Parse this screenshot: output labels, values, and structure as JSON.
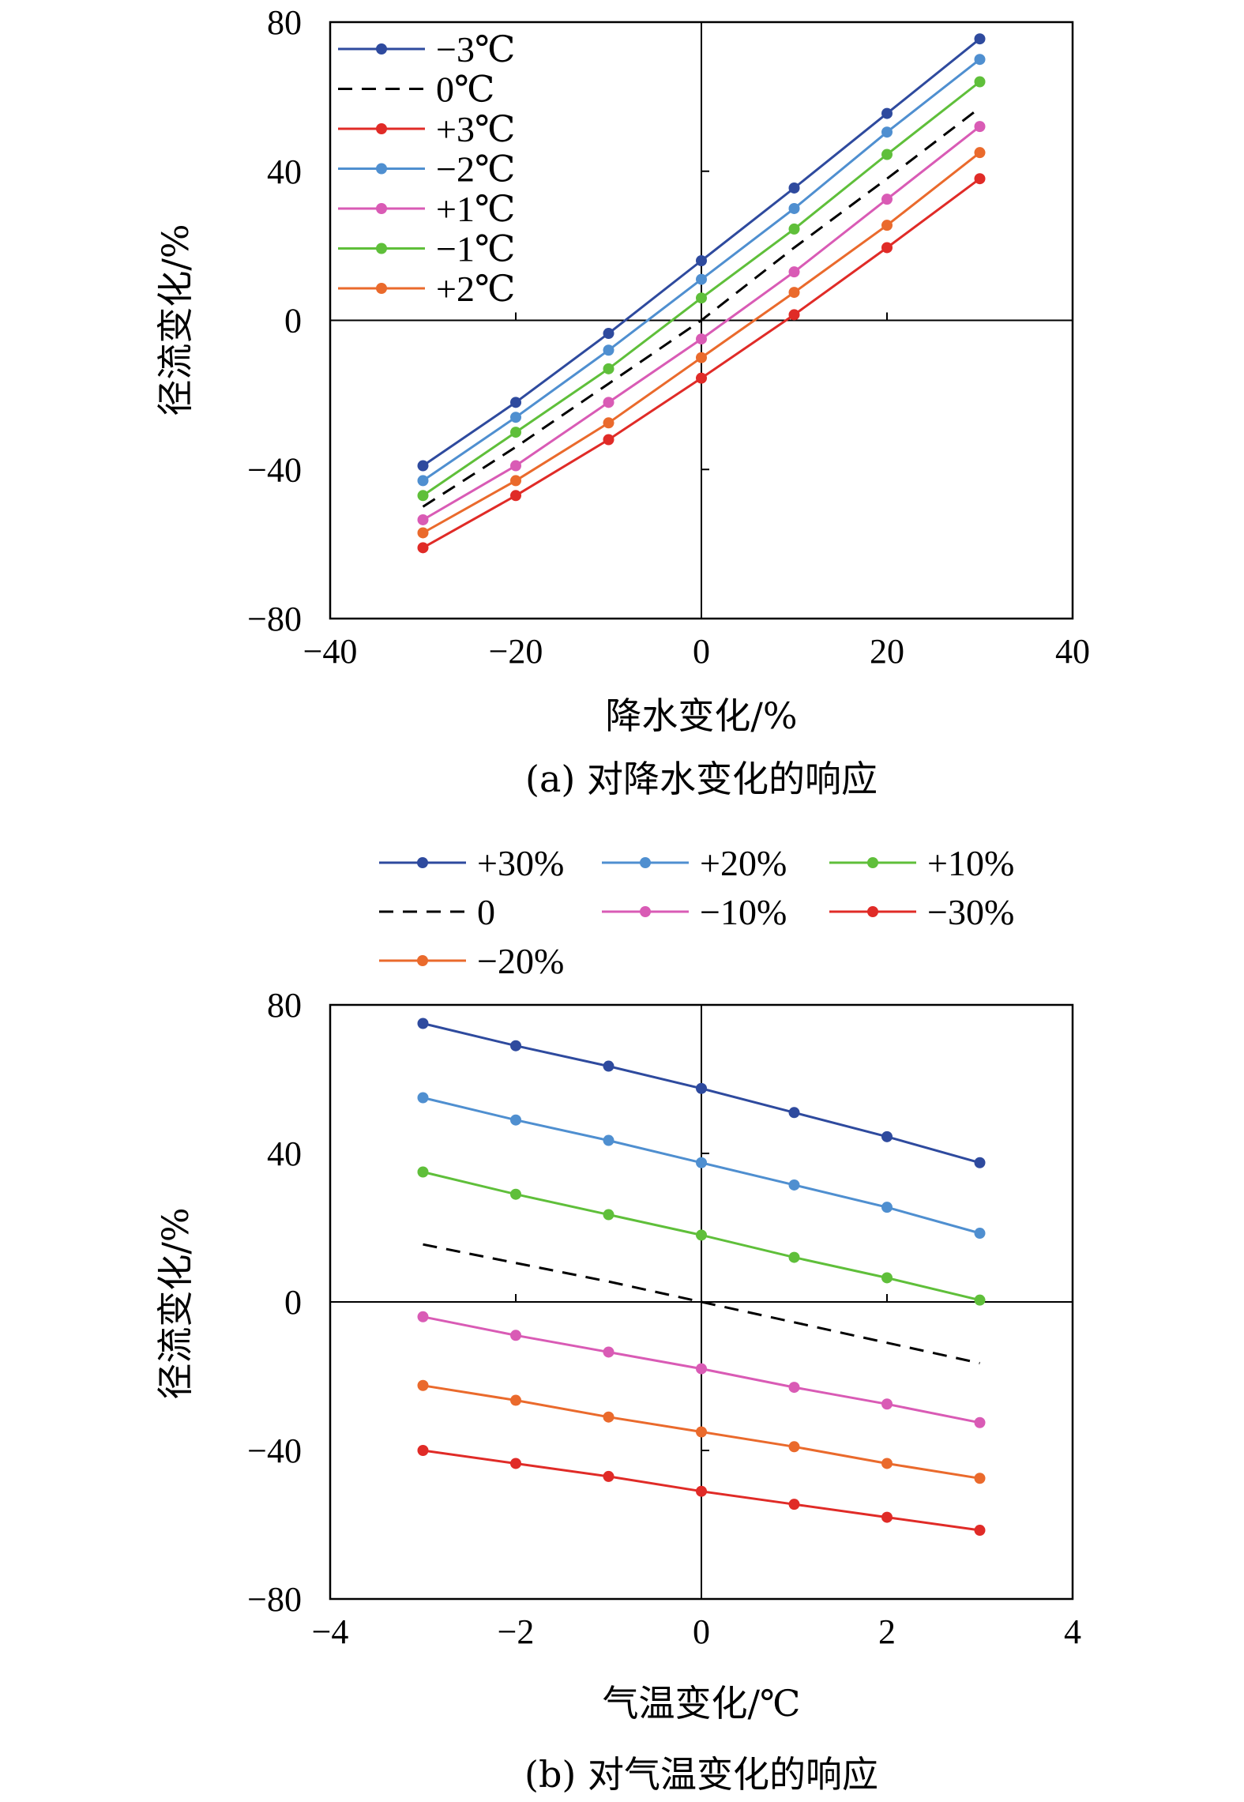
{
  "chart_data": [
    {
      "type": "line",
      "xlabel": "降水变化/%",
      "ylabel": "径流变化/%",
      "caption": "(a) 对降水变化的响应",
      "xlim": [
        -40,
        40
      ],
      "ylim": [
        -80,
        80
      ],
      "xticks": [
        "−40",
        "−20",
        "0",
        "20",
        "40"
      ],
      "yticks": [
        "80",
        "40",
        "0",
        "−40",
        "−80"
      ],
      "legend_position": "top-left",
      "x": [
        -30,
        -20,
        -10,
        0,
        10,
        20,
        30
      ],
      "series": [
        {
          "name": "−3℃",
          "color": "#2e4a9e",
          "dashed": false,
          "markers": true,
          "values": [
            -39,
            -22,
            -3.5,
            16,
            35.5,
            55.5,
            75.5
          ]
        },
        {
          "name": "0℃",
          "color": "#000000",
          "dashed": true,
          "markers": false,
          "values": [
            -50,
            -34,
            -17,
            0,
            19.5,
            38,
            57
          ]
        },
        {
          "name": "+3℃",
          "color": "#e02b27",
          "dashed": false,
          "markers": true,
          "values": [
            -61,
            -47,
            -32,
            -15.5,
            1.5,
            19.5,
            38
          ]
        },
        {
          "name": "−2℃",
          "color": "#4f8fd0",
          "dashed": false,
          "markers": true,
          "values": [
            -43,
            -26,
            -8,
            11,
            30,
            50.5,
            70
          ]
        },
        {
          "name": "+1℃",
          "color": "#d95bb5",
          "dashed": false,
          "markers": true,
          "values": [
            -53.5,
            -39,
            -22,
            -5,
            13,
            32.5,
            52
          ]
        },
        {
          "name": "−1℃",
          "color": "#5fbf3a",
          "dashed": false,
          "markers": true,
          "values": [
            -47,
            -30,
            -13,
            6,
            24.5,
            44.5,
            64
          ]
        },
        {
          "name": "+2℃",
          "color": "#ea6a2c",
          "dashed": false,
          "markers": true,
          "values": [
            -57,
            -43,
            -27.5,
            -10,
            7.5,
            25.5,
            45
          ]
        }
      ]
    },
    {
      "type": "line",
      "xlabel": "气温变化/℃",
      "ylabel": "径流变化/%",
      "caption": "(b) 对气温变化的响应",
      "xlim": [
        -4,
        4
      ],
      "ylim": [
        -80,
        80
      ],
      "xticks": [
        "−4",
        "−2",
        "0",
        "2",
        "4"
      ],
      "yticks": [
        "80",
        "40",
        "0",
        "−40",
        "−80"
      ],
      "legend_position": "top, outside",
      "x": [
        -3,
        -2,
        -1,
        0,
        1,
        2,
        3
      ],
      "series": [
        {
          "name": "+30%",
          "color": "#2e4a9e",
          "dashed": false,
          "markers": true,
          "values": [
            75,
            69,
            63.5,
            57.5,
            51,
            44.5,
            37.5
          ]
        },
        {
          "name": "+20%",
          "color": "#4f8fd0",
          "dashed": false,
          "markers": true,
          "values": [
            55,
            49,
            43.5,
            37.5,
            31.5,
            25.5,
            18.5
          ]
        },
        {
          "name": "+10%",
          "color": "#5fbf3a",
          "dashed": false,
          "markers": true,
          "values": [
            35,
            29,
            23.5,
            18,
            12,
            6.5,
            0.5
          ]
        },
        {
          "name": "0",
          "color": "#000000",
          "dashed": true,
          "markers": false,
          "values": [
            15.5,
            10.5,
            5.5,
            0,
            -5.5,
            -11,
            -16.5
          ]
        },
        {
          "name": "−10%",
          "color": "#d95bb5",
          "dashed": false,
          "markers": true,
          "values": [
            -4,
            -9,
            -13.5,
            -18,
            -23,
            -27.5,
            -32.5
          ]
        },
        {
          "name": "−30%",
          "color": "#e02b27",
          "dashed": false,
          "markers": true,
          "values": [
            -40,
            -43.5,
            -47,
            -51,
            -54.5,
            -58,
            -61.5
          ]
        },
        {
          "name": "−20%",
          "color": "#ea6a2c",
          "dashed": false,
          "markers": true,
          "values": [
            -22.5,
            -26.5,
            -31,
            -35,
            -39,
            -43.5,
            -47.5
          ]
        }
      ]
    }
  ]
}
